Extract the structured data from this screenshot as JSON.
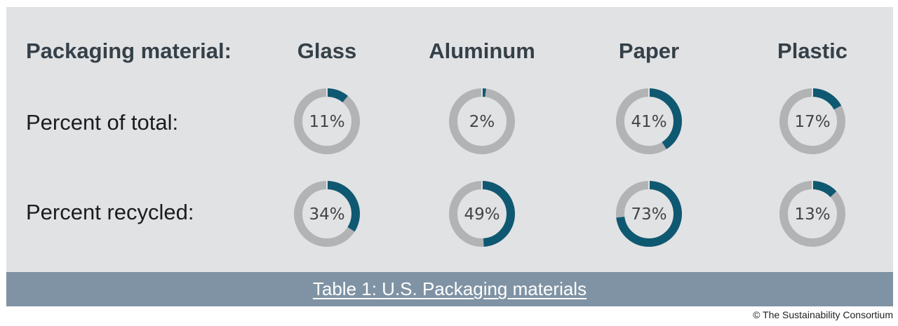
{
  "header_label": "Packaging material:",
  "rows": [
    {
      "label": "Percent of total:"
    },
    {
      "label": "Percent recycled:"
    }
  ],
  "caption": "Table 1: U.S. Packaging materials",
  "copyright": "© The Sustainability Consortium",
  "colors": {
    "background": "#e1e2e4",
    "accent": "#0f5871",
    "track": "#b2b3b5",
    "caption_bar": "#7f93a4"
  },
  "chart_data": {
    "type": "table",
    "categories": [
      "Glass",
      "Aluminum",
      "Paper",
      "Plastic"
    ],
    "series": [
      {
        "name": "Percent of total:",
        "values": [
          11,
          2,
          41,
          17
        ]
      },
      {
        "name": "Percent recycled:",
        "values": [
          34,
          49,
          73,
          13
        ]
      }
    ],
    "value_labels": [
      [
        "11%",
        "2%",
        "41%",
        "17%"
      ],
      [
        "34%",
        "49%",
        "73%",
        "13%"
      ]
    ],
    "title": "Table 1: U.S. Packaging materials"
  }
}
